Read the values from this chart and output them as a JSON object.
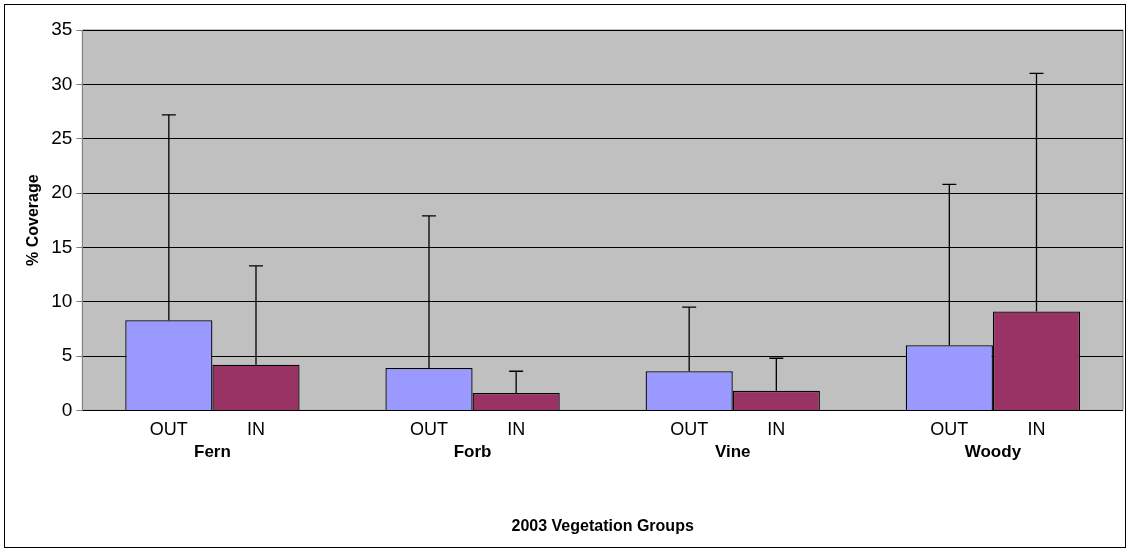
{
  "chart_data": {
    "type": "bar",
    "categories": [
      "Fern",
      "Forb",
      "Vine",
      "Woody"
    ],
    "xlabel": "2003 Vegetation Groups",
    "ylabel": "% Coverage",
    "series": [
      {
        "name": "OUT",
        "color": "#9999ff",
        "values": [
          8.3,
          3.9,
          3.6,
          6.0
        ],
        "errors": [
          [
            8.3,
            27.2
          ],
          [
            3.9,
            17.9
          ],
          [
            3.6,
            9.5
          ],
          [
            6.0,
            20.8
          ]
        ]
      },
      {
        "name": "IN",
        "color": "#993366",
        "values": [
          4.2,
          1.6,
          1.8,
          9.1
        ],
        "errors": [
          [
            4.2,
            13.3
          ],
          [
            1.6,
            3.6
          ],
          [
            1.8,
            4.8
          ],
          [
            9.1,
            31.0
          ]
        ]
      }
    ],
    "ylim": [
      0,
      35
    ],
    "yticks": [
      0,
      5,
      10,
      15,
      20,
      25,
      30,
      35
    ],
    "grid": "y",
    "legend": false
  }
}
